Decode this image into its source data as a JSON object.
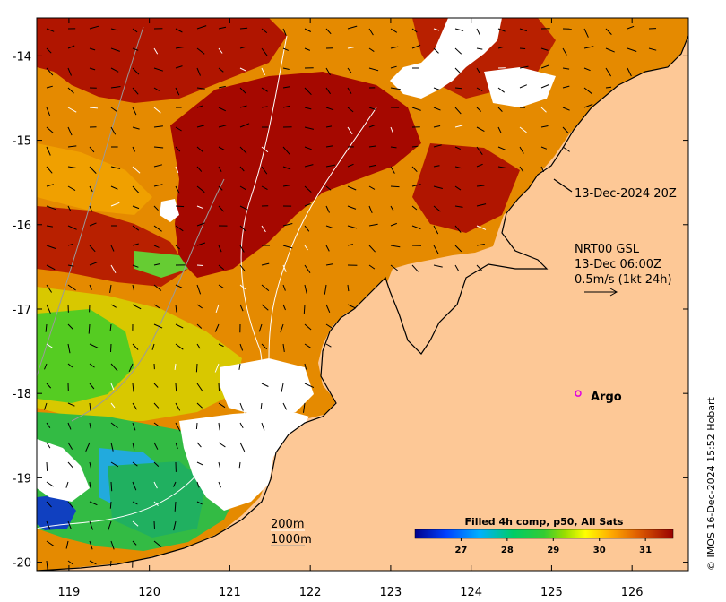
{
  "map": {
    "lon_range": [
      118.6,
      126.7
    ],
    "lat_range": [
      -20.1,
      -13.55
    ],
    "lon_ticks": [
      119,
      120,
      121,
      122,
      123,
      124,
      125,
      126
    ],
    "lat_ticks": [
      -14,
      -15,
      -16,
      -17,
      -18,
      -19,
      -20
    ],
    "land_color": "#fdc896",
    "nodata_color": "#ffffff"
  },
  "annotations": {
    "track_date": "13-Dec-2024 20Z",
    "current_source": "NRT00 GSL",
    "current_time": "13-Dec 06:00Z",
    "current_scale": "0.5m/s (1kt 24h)",
    "depth_200": "200m",
    "depth_1000": "1000m"
  },
  "argo": {
    "label": "Argo",
    "lon": 125.33,
    "lat": -18.0,
    "color": "#e000e0"
  },
  "colorbar": {
    "title": "Filled 4h comp, p50, All Sats",
    "min": 26.0,
    "max": 31.6,
    "ticks": [
      27,
      28,
      29,
      30,
      31
    ]
  },
  "credit": "© IMOS 16-Dec-2024 15:52 Hobart"
}
